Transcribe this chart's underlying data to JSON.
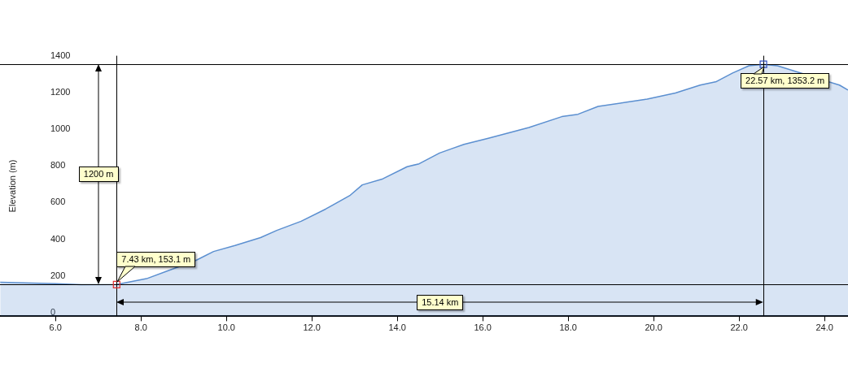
{
  "chart_data": {
    "type": "area",
    "ylabel": "Elevation (m)",
    "series": [
      {
        "color": "#5b8fd0",
        "x": [
          4.705,
          6.0,
          6.6,
          7.43,
          8.13,
          8.7,
          9.28,
          9.7,
          10.2,
          10.8,
          11.18,
          11.75,
          12.32,
          12.9,
          13.18,
          13.66,
          14.23,
          14.51,
          14.99,
          15.27,
          15.56,
          16.13,
          17.08,
          17.85,
          18.23,
          18.7,
          19.37,
          19.85,
          20.51,
          21.09,
          21.47,
          21.85,
          22.23,
          22.57,
          22.9,
          24.35,
          24.55
        ],
        "values": [
          165,
          158,
          152,
          153,
          185,
          234,
          284,
          333,
          366,
          409,
          448,
          498,
          564,
          640,
          696,
          729,
          795,
          811,
          870,
          893,
          917,
          950,
          1009,
          1068,
          1081,
          1124,
          1147,
          1164,
          1197,
          1240,
          1259,
          1306,
          1345,
          1353,
          1345,
          1240,
          1213
        ]
      }
    ],
    "xlim": [
      4.7,
      24.55
    ],
    "ylim": [
      -20,
      1400
    ],
    "xticks": [
      {
        "value": 6,
        "label": "6.0"
      },
      {
        "value": 8,
        "label": "8.0"
      },
      {
        "value": 10,
        "label": "10.0"
      },
      {
        "value": 12,
        "label": "12.0"
      },
      {
        "value": 14,
        "label": "14.0"
      },
      {
        "value": 16,
        "label": "16.0"
      },
      {
        "value": 18,
        "label": "18.0"
      },
      {
        "value": 20,
        "label": "20.0"
      },
      {
        "value": 22,
        "label": "22.0"
      },
      {
        "value": 24,
        "label": "24.0"
      }
    ],
    "yticks": [
      0,
      200,
      400,
      600,
      800,
      1000,
      1200,
      1400
    ],
    "ref_lines": [
      {
        "axis": "y",
        "value": 153.1,
        "color": "#000000"
      },
      {
        "axis": "y",
        "value": 1353.2,
        "color": "#000000"
      },
      {
        "axis": "x",
        "value": 7.43,
        "color": "#000000"
      },
      {
        "axis": "x",
        "value": 22.57,
        "color": "#000000"
      }
    ],
    "annotations": [
      {
        "text": "7.43 km, 153.1 m",
        "x": 7.43,
        "y": 153.1
      },
      {
        "text": "22.57 km, 1353.2 m",
        "x": 22.57,
        "y": 1353.2
      },
      "1200 m",
      "15.14 km"
    ]
  }
}
